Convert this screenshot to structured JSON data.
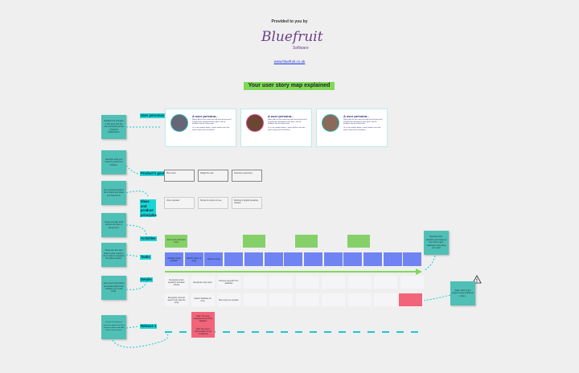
{
  "header": {
    "provided": "Provided to you by",
    "logo": "Bluefruit",
    "logo_sub": "Software",
    "link": "www.bluefruit.co.uk",
    "title": "Your user story map explained"
  },
  "colors": {
    "note": "#4fc0b5",
    "label": "#19d6d6",
    "activity": "#86d06a",
    "task": "#6f84f2",
    "risk": "#f2647a",
    "title_bg": "#7ed957"
  },
  "left_notes": [
    "Replace the scenario in this area with the user personas you've created in collaboration.",
    "Describe what you want the product to achieve.",
    "Key elements behind the product and ideas you have for it.",
    "These are high level actions the user is trying to do.",
    "These are the main tasks a user needs to do in order to complete the above activity.",
    "Here you're describing the details behind the software you could build.",
    "Use your first release to capture the minimum features needed to deliver value. Add further releases below."
  ],
  "labels": {
    "personas": "User personas",
    "goals": "Product's goals",
    "principles": "Ideas and product principles",
    "activities": "Activities",
    "tasks": "Tasks",
    "details": "Details",
    "release": "Release 1"
  },
  "personas": [
    {
      "title": "A user persona...",
      "text": "Where did this user come from and what do they want? Describe their background, their goals, and the problems they face day to day.",
      "text2": "Or, in our example below: a smart speaker user who wants to play music hands-free."
    },
    {
      "title": "A user persona...",
      "text": "Where did this user come from and what do they want? Describe their background, their goals, and the problems they face day to day.",
      "text2": "Or, in our example below: a smart speaker user who wants to play music hands-free."
    },
    {
      "title": "A user persona...",
      "text": "Where did this user come from and what do they want? Describe their background, their goals, and the problems they face day to day.",
      "text2": "Or, in our example below: a smart speaker user who wants to play music hands-free."
    }
  ],
  "goals": [
    "Play music",
    "Delight the user",
    "Seamless experience"
  ],
  "principles": [
    "Voice operated",
    "Simple for anyone to use",
    "Working in English speaking markets"
  ],
  "activities": [
    "Ask to play favourite song",
    "",
    "",
    ""
  ],
  "tasks": [
    "Activate smart speaker",
    "Ask for name of song",
    "Listen to song",
    "",
    "",
    "",
    "",
    "",
    "",
    "",
    "",
    "",
    ""
  ],
  "details_row1": [
    "Recognise smart speaker's activation phrase",
    "Recognise song name",
    "Retrieve song file from database",
    "",
    "",
    "",
    "",
    "",
    "",
    ""
  ],
  "details_row2": [
    "Recognise common ways to say 'play the song'",
    "Search database for song",
    "Play song over speaker",
    "",
    "",
    "",
    "",
    "",
    "",
    ""
  ],
  "risks": [
    "Risk: The song requested is not in the database",
    "Risk: The user's pronunciation is not recognised",
    ""
  ],
  "right_notes": [
    "Narrative flow: activities and tasks go from left to right, catalogue everything you need",
    "Show risks to the project using a different colour."
  ]
}
